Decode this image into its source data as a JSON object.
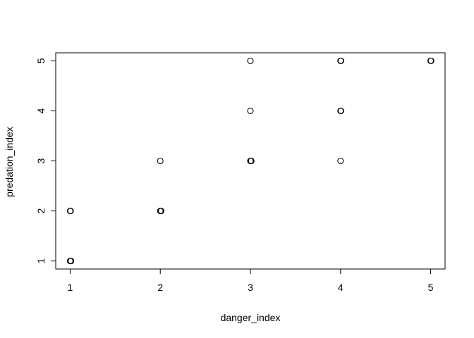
{
  "chart_data": {
    "type": "scatter",
    "title": "",
    "xlabel": "danger_index",
    "ylabel": "predation_index",
    "xlim": [
      0.84,
      5.16
    ],
    "ylim": [
      0.84,
      5.16
    ],
    "xticks": [
      1,
      2,
      3,
      4,
      5
    ],
    "yticks": [
      1,
      2,
      3,
      4,
      5
    ],
    "grid": false,
    "marker": "open-circle",
    "marker_color": "#000000",
    "points": [
      {
        "x": 1,
        "y": 1
      },
      {
        "x": 1,
        "y": 1
      },
      {
        "x": 1,
        "y": 1
      },
      {
        "x": 1,
        "y": 2
      },
      {
        "x": 1,
        "y": 2
      },
      {
        "x": 2,
        "y": 2
      },
      {
        "x": 2,
        "y": 2
      },
      {
        "x": 2,
        "y": 2
      },
      {
        "x": 2,
        "y": 3
      },
      {
        "x": 3,
        "y": 3
      },
      {
        "x": 3,
        "y": 3
      },
      {
        "x": 3,
        "y": 3
      },
      {
        "x": 3,
        "y": 4
      },
      {
        "x": 3,
        "y": 5
      },
      {
        "x": 4,
        "y": 3
      },
      {
        "x": 4,
        "y": 4
      },
      {
        "x": 4,
        "y": 4
      },
      {
        "x": 4,
        "y": 5
      },
      {
        "x": 4,
        "y": 5
      },
      {
        "x": 5,
        "y": 5
      },
      {
        "x": 5,
        "y": 5
      }
    ]
  }
}
